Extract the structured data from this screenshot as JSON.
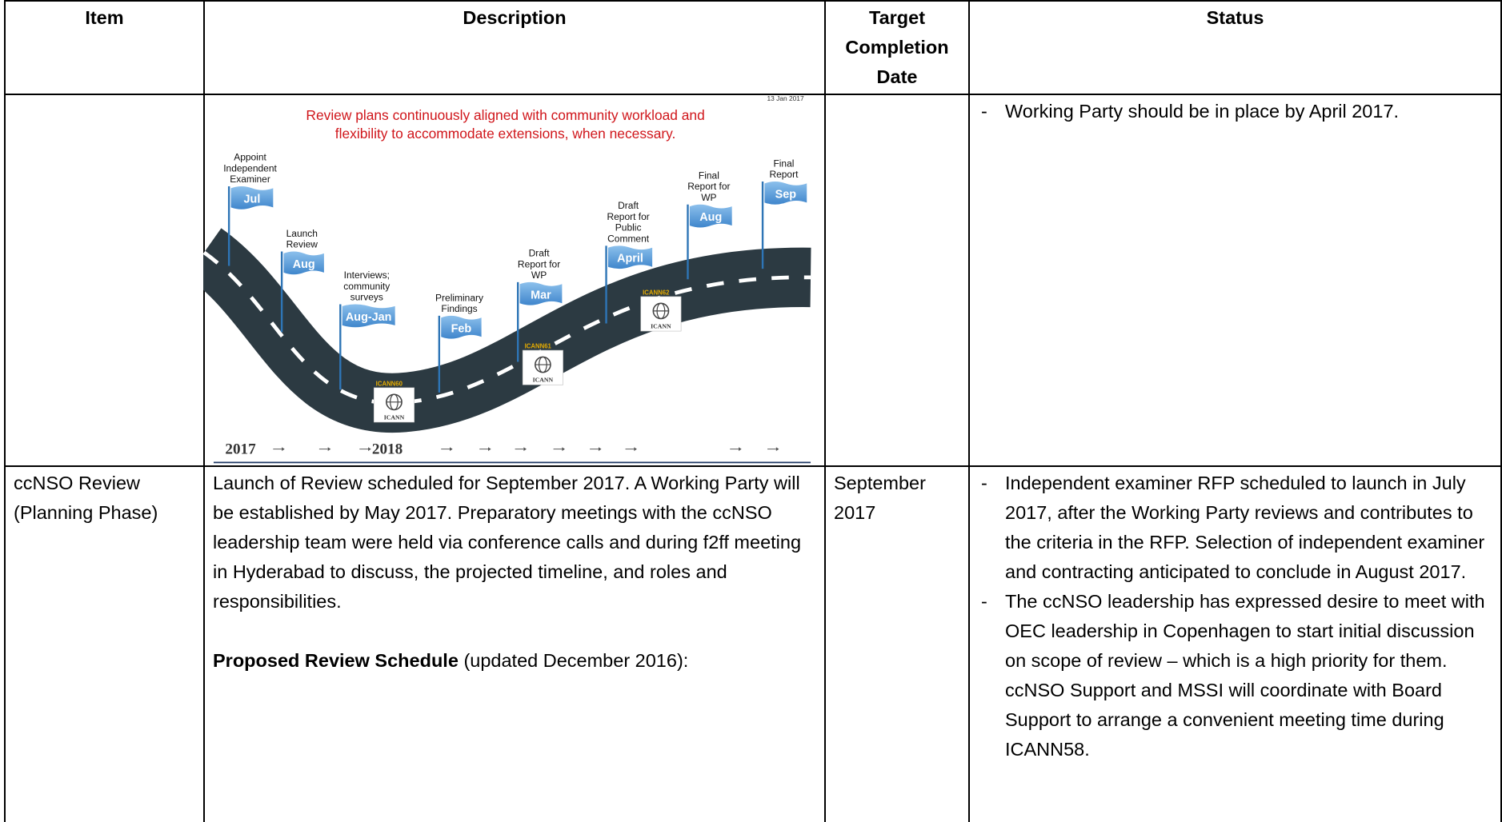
{
  "header": [
    "Item",
    "Description",
    "Target Completion Date",
    "Status"
  ],
  "row1": {
    "figure": {
      "date": "13 Jan 2017",
      "headline": [
        "Review plans continuously aligned with community workload and",
        "flexibility to accommodate extensions, when necessary."
      ],
      "milestones": [
        {
          "label": [
            "Appoint",
            "Independent",
            "Examiner"
          ],
          "flag": "Jul"
        },
        {
          "label": [
            "Launch",
            "Review"
          ],
          "flag": "Aug"
        },
        {
          "label": [
            "Interviews;",
            "community",
            "surveys"
          ],
          "flag": "Aug-Jan"
        },
        {
          "label": [
            "Preliminary",
            "Findings"
          ],
          "flag": "Feb"
        },
        {
          "label": [
            "Draft",
            "Report for",
            "WP"
          ],
          "flag": "Mar"
        },
        {
          "label": [
            "Draft",
            "Report for",
            "Public",
            "Comment"
          ],
          "flag": "April"
        },
        {
          "label": [
            "Final",
            "Report for",
            "WP"
          ],
          "flag": "Aug"
        },
        {
          "label": [
            "Final",
            "Report"
          ],
          "flag": "Sep"
        }
      ],
      "meetings": [
        {
          "name": "ICANN60",
          "logo": "ICANN"
        },
        {
          "name": "ICANN61",
          "logo": "ICANN"
        },
        {
          "name": "ICANN62",
          "logo": "ICANN"
        }
      ],
      "years": [
        "2017",
        "2018"
      ]
    },
    "status": [
      "Working Party should be in place by April 2017."
    ]
  },
  "row2": {
    "item": "ccNSO Review (Planning Phase)",
    "description": "Launch of Review scheduled for September 2017.  A Working Party will be established by May 2017. Preparatory meetings with the ccNSO leadership team were held via conference calls and during f2ff meeting in Hyderabad to discuss, the projected timeline, and roles and responsibilities.",
    "schedule_bold": "Proposed Review Schedule",
    "schedule_rest": "(updated December 2016):",
    "target": "September 2017",
    "status": [
      "Independent examiner RFP scheduled to launch in July 2017, after the Working Party reviews and contributes to the criteria in the RFP.  Selection of independent examiner and contracting anticipated to conclude in August 2017.",
      "The ccNSO leadership has expressed desire to meet with OEC leadership in Copenhagen to start initial discussion on scope of review – which is a high priority for them. ccNSO Support and MSSI will coordinate with Board Support to arrange a convenient meeting time during ICANN58."
    ]
  }
}
